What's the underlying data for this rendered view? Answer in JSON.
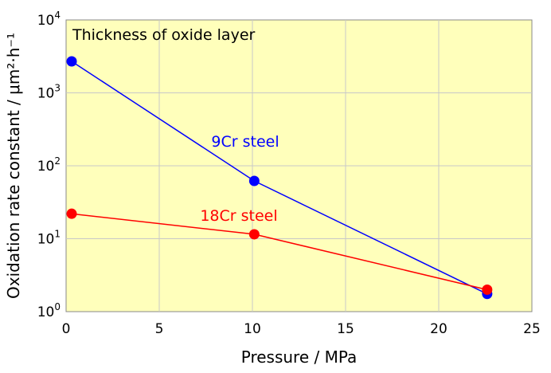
{
  "chart_data": {
    "type": "line",
    "title": "Thickness of oxide layer",
    "xlabel": "Pressure / MPa",
    "ylabel": "Oxidation rate constant / μm²·h⁻¹",
    "xlim": [
      0,
      25
    ],
    "ylim": [
      1,
      10000
    ],
    "yscale": "log",
    "grid": true,
    "background_color": "#FFFFBB",
    "x_ticks": [
      "0",
      "5",
      "10",
      "15",
      "20",
      "25"
    ],
    "x_tick_values": [
      0,
      5,
      10,
      15,
      20,
      25
    ],
    "y_ticks": [
      {
        "value": 1,
        "base": "10",
        "exp": "0"
      },
      {
        "value": 10,
        "base": "10",
        "exp": "1"
      },
      {
        "value": 100,
        "base": "10",
        "exp": "2"
      },
      {
        "value": 1000,
        "base": "10",
        "exp": "3"
      },
      {
        "value": 10000,
        "base": "10",
        "exp": "4"
      }
    ],
    "series": [
      {
        "name": "9Cr steel",
        "color": "#0000FF",
        "x": [
          0.3,
          10.1,
          22.6
        ],
        "y": [
          2700,
          62,
          1.75
        ]
      },
      {
        "name": "18Cr steel",
        "color": "#FF0000",
        "x": [
          0.3,
          10.1,
          22.6
        ],
        "y": [
          22,
          11.5,
          2.0
        ]
      }
    ]
  }
}
